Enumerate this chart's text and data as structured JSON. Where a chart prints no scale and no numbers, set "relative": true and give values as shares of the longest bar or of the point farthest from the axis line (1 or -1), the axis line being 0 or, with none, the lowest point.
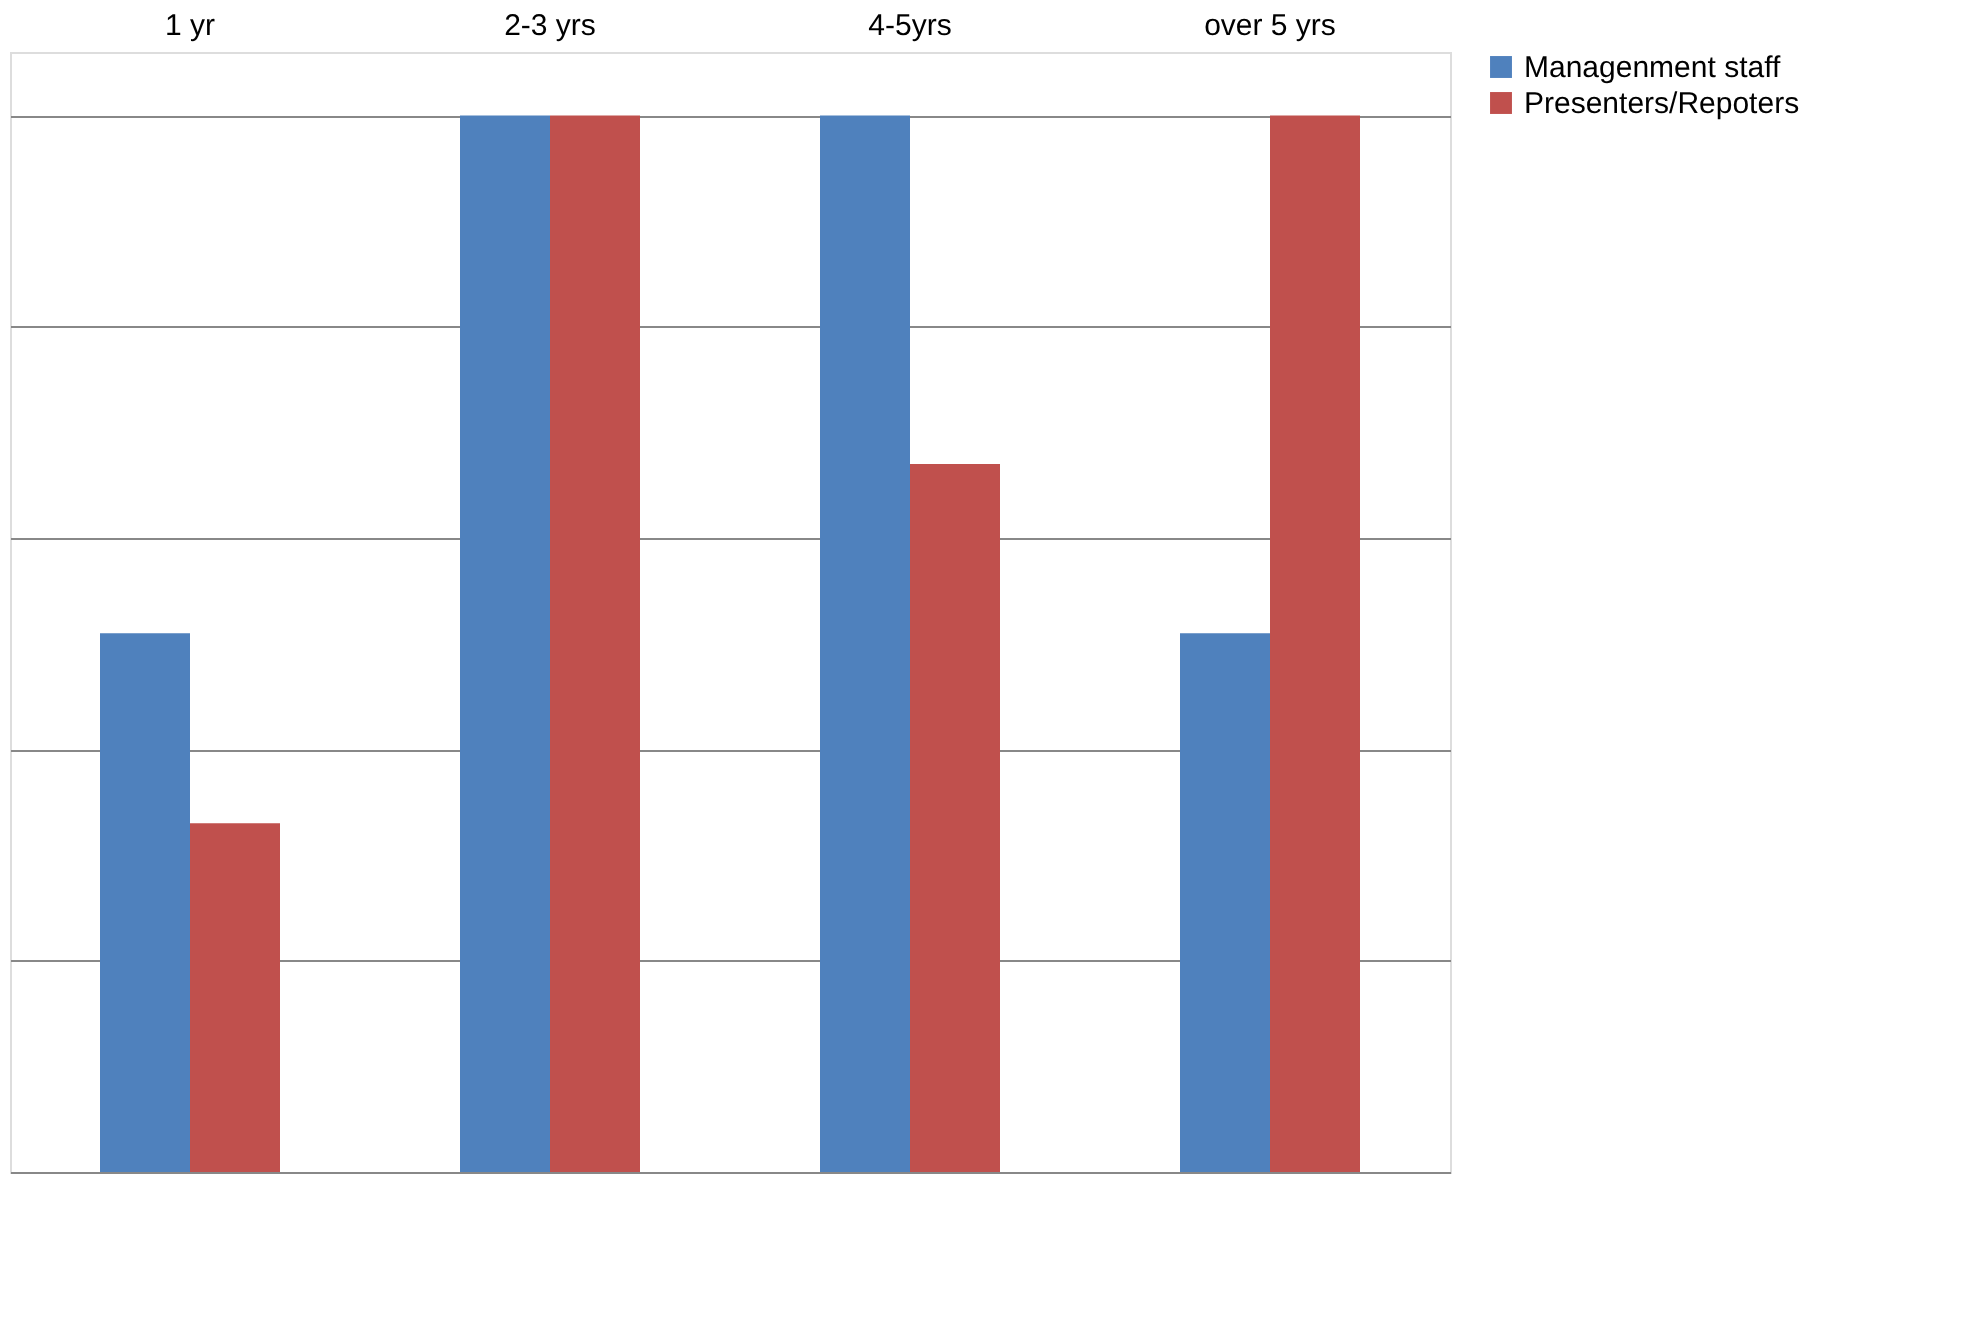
{
  "chart_data": {
    "type": "bar",
    "relative": true,
    "categories": [
      "1 yr",
      "2-3 yrs",
      "4-5yrs",
      "over 5 yrs"
    ],
    "series": [
      {
        "name": "Managenment staff",
        "color": "#4f81bd",
        "values": [
          0.51,
          1,
          1,
          0.51
        ]
      },
      {
        "name": "Presenters/Repoters",
        "color": "#c0504d",
        "values": [
          0.33,
          1,
          0.67,
          1
        ]
      }
    ],
    "grid": "y",
    "legend": "right"
  }
}
